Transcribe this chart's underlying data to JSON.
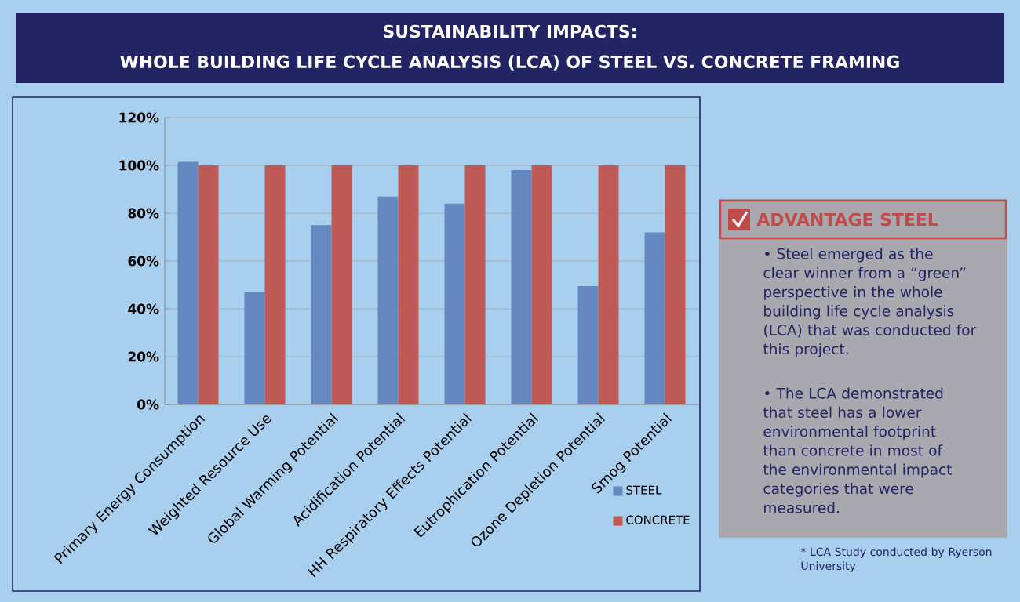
{
  "chart_data": {
    "type": "bar",
    "title": "SUSTAINABILITY IMPACTS:",
    "subtitle": "WHOLE BUILDING LIFE CYCLE ANALYSIS (LCA) OF STEEL VS. CONCRETE FRAMING",
    "categories": [
      "Primary Energy Consumption",
      "Weighted Resource Use",
      "Global Warming Potential",
      "Acidification Potential",
      "HH Respiratory Effects Potential",
      "Eutrophication Potential",
      "Ozone Depletion Potential",
      "Smog Potential"
    ],
    "series": [
      {
        "name": "STEEL",
        "color": "#6588c0",
        "values": [
          101.5,
          47,
          75,
          87,
          84,
          98,
          49.5,
          72
        ]
      },
      {
        "name": "CONCRETE",
        "color": "#bf5b57",
        "values": [
          100,
          100,
          100,
          100,
          100,
          100,
          100,
          100
        ]
      }
    ],
    "ylim": [
      0,
      120
    ],
    "yticks": [
      {
        "value": 0,
        "label": "0%"
      },
      {
        "value": 20,
        "label": "20%"
      },
      {
        "value": 40,
        "label": "40%"
      },
      {
        "value": 60,
        "label": "60%"
      },
      {
        "value": 80,
        "label": "80%"
      },
      {
        "value": 100,
        "label": "100%"
      },
      {
        "value": 120,
        "label": "120%"
      }
    ],
    "grid": "y",
    "legend": "bottom right",
    "annotations": [
      "ADVANTAGE STEEL",
      "• Steel emerged as the clear winner from a “green” perspective in the whole building life cycle analysis (LCA) that was conducted for this project.",
      "• The LCA demonstrated that steel has a lower environmental footprint than concrete in most of the environmental impact categories that were measured.",
      "* LCA Study conducted by Ryerson University"
    ]
  }
}
